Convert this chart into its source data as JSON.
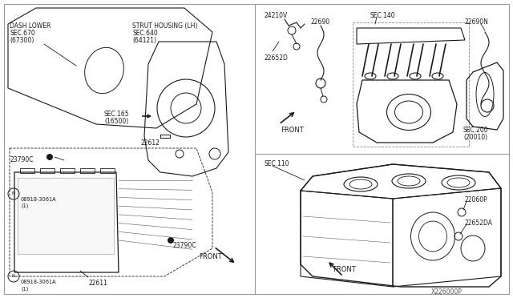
{
  "bg_color": "#ffffff",
  "line_color": "#1a1a1a",
  "diagram_id": "X226000P",
  "labels": {
    "dash_lower": "DASH LOWER\nSEC.670\n(67300)",
    "strut_housing": "STRUT HOUSING (LH)\nSEC.640\n(64121)",
    "sec165": "SEC.165\n(16500)",
    "p22612": "22612",
    "p23790C_1": "23790C",
    "p23790C_2": "23790C",
    "p22611": "22611",
    "bolt1": "N08918-3061A\n(1)",
    "bolt2": "N08918-3061A\n(1)",
    "p24210V": "24210V",
    "p22690": "22690",
    "p22652D": "22652D",
    "sec140": "SEC.140",
    "p22690N": "22690N",
    "sec200": "SEC.200\n(20010)",
    "sec110": "SEC.110",
    "p22060P": "22060P",
    "p22652DA": "22652DA",
    "front1": "FRONT",
    "front2": "FRONT",
    "front3": "FRONT"
  }
}
